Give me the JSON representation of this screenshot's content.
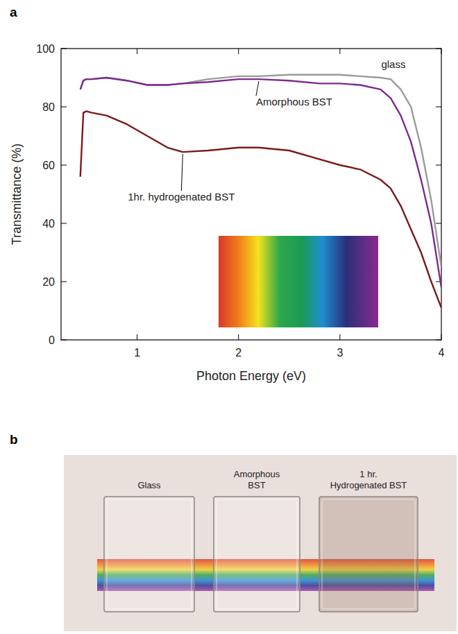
{
  "chart_data": {
    "type": "line",
    "panel_label": "a",
    "x_label": "Photon Energy (eV)",
    "y_label": "Transmittance (%)",
    "x": [
      0.44,
      0.47,
      0.5,
      0.55,
      0.7,
      0.9,
      1.1,
      1.3,
      1.45,
      1.7,
      2.0,
      2.2,
      2.5,
      2.8,
      3.0,
      3.2,
      3.4,
      3.5,
      3.6,
      3.7,
      3.8,
      3.9,
      4.0
    ],
    "xlim": [
      0.25,
      4
    ],
    "xticks": [
      1,
      2,
      3,
      4
    ],
    "ylim": [
      0,
      100
    ],
    "yticks": [
      0,
      20,
      40,
      60,
      80,
      100
    ],
    "series": [
      {
        "name": "glass",
        "color": "#9a9a9a",
        "values": [
          86,
          89,
          89.5,
          89.5,
          90,
          89,
          87.5,
          87.5,
          88,
          89.5,
          90.5,
          90.5,
          91,
          91,
          91,
          90.5,
          90,
          89.5,
          86,
          80,
          66,
          48,
          25
        ]
      },
      {
        "name": "Amorphous BST",
        "color": "#7b2a8e",
        "values": [
          86,
          89,
          89.5,
          89.5,
          90,
          89,
          87.5,
          87.5,
          88,
          88.5,
          89.5,
          89.5,
          89,
          88,
          88,
          87.5,
          86,
          83,
          77,
          68,
          55,
          40,
          18
        ]
      },
      {
        "name": "1hr. hydrogenated BST",
        "color": "#7a1a1a",
        "values": [
          56,
          78,
          78.5,
          78,
          77,
          74,
          70,
          66,
          64.5,
          65,
          66,
          66,
          65,
          62,
          60,
          58.5,
          55,
          52,
          46,
          38,
          30,
          20,
          11
        ]
      }
    ]
  },
  "photo": {
    "panel_label": "b",
    "samples": [
      "Glass",
      "Amorphous BST",
      "1 hr. Hydrogenated BST"
    ]
  }
}
